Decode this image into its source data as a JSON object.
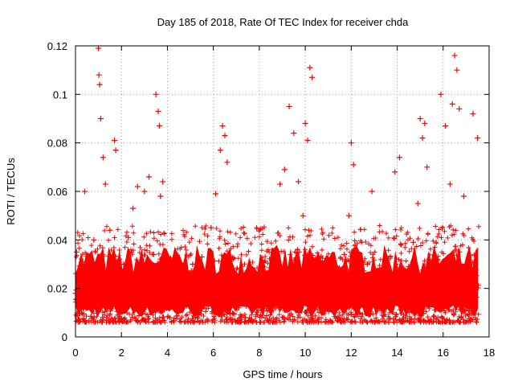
{
  "chart_data": {
    "type": "scatter",
    "title": "Day 185 of 2018, Rate Of TEC Index for receiver chda",
    "xlabel": "GPS time / hours",
    "ylabel": "ROTI / TECUs",
    "xlim": [
      0,
      18
    ],
    "ylim": [
      0,
      0.12
    ],
    "xticks": [
      0,
      2,
      4,
      6,
      8,
      10,
      12,
      14,
      16,
      18
    ],
    "xtick_labels": [
      "0",
      "2",
      "4",
      "6",
      "8",
      "10",
      "12",
      "14",
      "16",
      "18"
    ],
    "yticks": [
      0,
      0.02,
      0.04,
      0.06,
      0.08,
      0.1,
      0.12
    ],
    "ytick_labels": [
      "0",
      "0.02",
      "0.04",
      "0.06",
      "0.08",
      "0.1",
      "0.12"
    ],
    "grid": true,
    "marker": "+",
    "marker_color": "#ff0000",
    "series": [
      {
        "name": "ROTI",
        "x": [
          0.0,
          0.05,
          0.1,
          0.15,
          0.2,
          0.3,
          0.4,
          0.5,
          0.6,
          0.7,
          0.8,
          0.9,
          1.0,
          1.02,
          1.05,
          1.1,
          1.2,
          1.3,
          1.4,
          1.5,
          1.6,
          1.7,
          1.75,
          1.8,
          1.9,
          2.0,
          2.1,
          2.2,
          2.3,
          2.4,
          2.5,
          2.6,
          2.7,
          2.8,
          2.9,
          3.0,
          3.1,
          3.2,
          3.3,
          3.4,
          3.5,
          3.6,
          3.65,
          3.7,
          3.8,
          3.9,
          4.0,
          4.1,
          4.2,
          4.3,
          4.5,
          4.7,
          4.9,
          5.1,
          5.3,
          5.5,
          5.7,
          5.9,
          6.1,
          6.3,
          6.4,
          6.5,
          6.6,
          6.7,
          6.9,
          7.1,
          7.3,
          7.5,
          7.7,
          7.9,
          8.1,
          8.3,
          8.5,
          8.7,
          8.9,
          9.1,
          9.3,
          9.5,
          9.7,
          9.9,
          10.0,
          10.1,
          10.2,
          10.3,
          10.5,
          10.7,
          10.9,
          11.1,
          11.3,
          11.5,
          11.7,
          11.9,
          12.0,
          12.1,
          12.3,
          12.5,
          12.7,
          12.9,
          13.1,
          13.3,
          13.5,
          13.7,
          13.9,
          14.1,
          14.3,
          14.5,
          14.7,
          14.9,
          15.0,
          15.1,
          15.2,
          15.3,
          15.5,
          15.7,
          15.9,
          16.1,
          16.3,
          16.4,
          16.5,
          16.6,
          16.7,
          16.9,
          17.1,
          17.3,
          17.5
        ],
        "y": [
          0.018,
          0.035,
          0.014,
          0.02,
          0.028,
          0.016,
          0.06,
          0.022,
          0.017,
          0.019,
          0.04,
          0.021,
          0.119,
          0.108,
          0.104,
          0.09,
          0.074,
          0.063,
          0.024,
          0.044,
          0.018,
          0.081,
          0.077,
          0.026,
          0.016,
          0.023,
          0.03,
          0.019,
          0.041,
          0.017,
          0.053,
          0.022,
          0.062,
          0.02,
          0.028,
          0.06,
          0.018,
          0.066,
          0.024,
          0.034,
          0.1,
          0.093,
          0.087,
          0.058,
          0.064,
          0.025,
          0.018,
          0.029,
          0.016,
          0.021,
          0.014,
          0.025,
          0.019,
          0.03,
          0.018,
          0.033,
          0.022,
          0.045,
          0.059,
          0.077,
          0.087,
          0.083,
          0.072,
          0.03,
          0.018,
          0.012,
          0.02,
          0.016,
          0.028,
          0.017,
          0.013,
          0.022,
          0.019,
          0.031,
          0.063,
          0.069,
          0.095,
          0.084,
          0.064,
          0.05,
          0.088,
          0.081,
          0.111,
          0.107,
          0.024,
          0.018,
          0.03,
          0.022,
          0.016,
          0.026,
          0.034,
          0.05,
          0.08,
          0.071,
          0.019,
          0.024,
          0.03,
          0.06,
          0.02,
          0.018,
          0.027,
          0.033,
          0.068,
          0.074,
          0.018,
          0.029,
          0.039,
          0.055,
          0.09,
          0.082,
          0.088,
          0.07,
          0.025,
          0.031,
          0.1,
          0.087,
          0.063,
          0.096,
          0.116,
          0.11,
          0.094,
          0.058,
          0.024,
          0.092,
          0.082
        ]
      }
    ]
  }
}
